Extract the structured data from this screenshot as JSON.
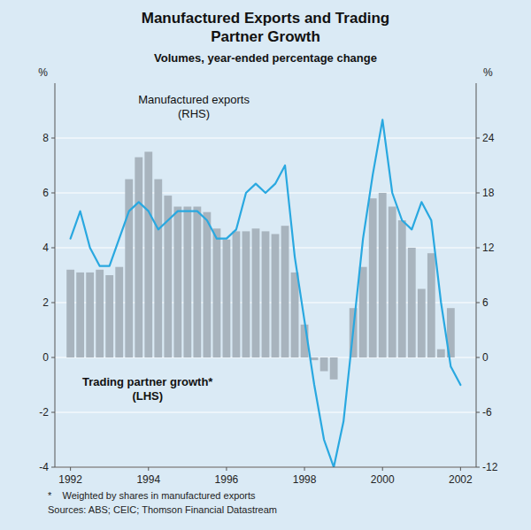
{
  "chart_data": {
    "type": "bar",
    "title": "Manufactured Exports and Trading\nPartner Growth",
    "subtitle": "Volumes, year-ended percentage change",
    "ylabel": "%",
    "y2label": "%",
    "xlim": [
      1991.6,
      2002.4
    ],
    "xticks": [
      1992,
      1994,
      1996,
      1998,
      2000,
      2002
    ],
    "ylim": [
      -4,
      10
    ],
    "yticks": [
      -4,
      -2,
      0,
      2,
      4,
      6,
      8
    ],
    "y2lim": [
      -12,
      30
    ],
    "y2ticks": [
      -12,
      -6,
      0,
      6,
      12,
      18,
      24
    ],
    "grid": true,
    "series": [
      {
        "type": "bar",
        "color": "#a8b4be",
        "x": [
          1992.0,
          1992.25,
          1992.5,
          1992.75,
          1993.0,
          1993.25,
          1993.5,
          1993.75,
          1994.0,
          1994.25,
          1994.5,
          1994.75,
          1995.0,
          1995.25,
          1995.5,
          1995.75,
          1996.0,
          1996.25,
          1996.5,
          1996.75,
          1997.0,
          1997.25,
          1997.5,
          1997.75,
          1998.0,
          1998.25,
          1998.5,
          1998.75,
          1999.0,
          1999.25,
          1999.5,
          1999.75,
          2000.0,
          2000.25,
          2000.5,
          2000.75,
          2001.0,
          2001.25,
          2001.5,
          2001.75
        ],
        "values": [
          3.2,
          3.1,
          3.1,
          3.2,
          3.0,
          3.3,
          6.5,
          7.3,
          7.5,
          6.5,
          5.9,
          5.5,
          5.5,
          5.5,
          5.3,
          4.7,
          4.3,
          4.6,
          4.6,
          4.7,
          4.6,
          4.5,
          4.8,
          3.1,
          1.2,
          -0.1,
          -0.5,
          -0.8,
          0.0,
          1.8,
          3.3,
          5.8,
          6.0,
          5.5,
          5.0,
          4.0,
          2.5,
          3.8,
          0.3,
          1.8
        ]
      },
      {
        "type": "line",
        "axis": "y2",
        "color": "#29a8e0",
        "x": [
          1992.0,
          1992.25,
          1992.5,
          1992.75,
          1993.0,
          1993.25,
          1993.5,
          1993.75,
          1994.0,
          1994.25,
          1994.5,
          1994.75,
          1995.0,
          1995.25,
          1995.5,
          1995.75,
          1996.0,
          1996.25,
          1996.5,
          1996.75,
          1997.0,
          1997.25,
          1997.5,
          1997.75,
          1998.0,
          1998.25,
          1998.5,
          1998.75,
          1999.0,
          1999.25,
          1999.5,
          1999.75,
          2000.0,
          2000.25,
          2000.5,
          2000.75,
          2001.0,
          2001.25,
          2001.5,
          2001.75,
          2002.0
        ],
        "values": [
          13,
          16,
          12,
          10,
          10,
          13,
          16,
          17,
          16,
          14,
          15,
          16,
          16,
          16,
          15,
          13,
          13,
          14,
          18,
          19,
          18,
          19,
          21,
          11,
          4,
          -3,
          -9,
          -12,
          -7,
          3,
          13,
          20,
          26,
          18,
          15,
          14,
          17,
          15,
          6,
          -1,
          -3
        ]
      }
    ],
    "annotations": [
      {
        "text": "Trading partner growth*\n(LHS)"
      },
      {
        "text": "Manufactured exports\n(RHS)"
      }
    ],
    "footnotes": [
      "*    Weighted by shares in manufactured exports",
      "Sources: ABS; CEIC; Thomson Financial Datastream"
    ]
  }
}
